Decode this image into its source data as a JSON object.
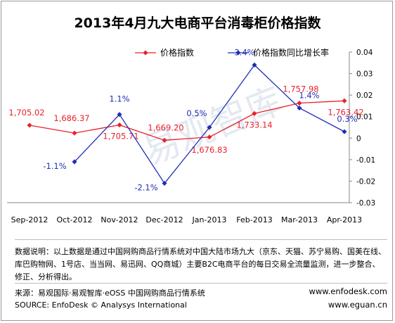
{
  "title": "2013年4月九大电商平台消毒柜价格指数",
  "colors": {
    "price": "#e8212b",
    "yoy": "#1f2fb5",
    "grid": "#c8c8c8",
    "watermark": "#cfd8e8"
  },
  "watermark": "易观智库",
  "chart_data": {
    "type": "line",
    "categories": [
      "Sep-2012",
      "Oct-2012",
      "Nov-2012",
      "Dec-2012",
      "Jan-2013",
      "Feb-2013",
      "Mar-2013",
      "Apr-2013"
    ],
    "series": [
      {
        "name": "价格指数",
        "axis": "left",
        "values": [
          1705.02,
          1686.37,
          1705.71,
          1669.2,
          1676.83,
          1733.14,
          1757.98,
          1763.42
        ],
        "labels": [
          "1,705.02",
          "1,686.37",
          "1,705.71",
          "1,669.20",
          "1,676.83",
          "1,733.14",
          "1,757.98",
          "1,763.42"
        ]
      },
      {
        "name": "价格指数同比增长率",
        "axis": "right",
        "values": [
          -0.011,
          null,
          0.011,
          -0.021,
          0.005,
          0.034,
          0.014,
          0.003
        ],
        "labels": [
          "-1.1%",
          "",
          "1.1%",
          "-2.1%",
          "0.5%",
          "3.4%",
          "1.4%",
          "0.3%"
        ]
      }
    ],
    "right_axis": {
      "ylim": [
        -0.03,
        0.04
      ],
      "ticks": [
        0.04,
        0.03,
        0.02,
        0.01,
        0,
        -0.01,
        -0.02,
        -0.03
      ],
      "tick_labels": [
        "0.04",
        "0.03",
        "0.02",
        "0.01",
        "0",
        "-0.01",
        "-0.02",
        "-0.03"
      ]
    },
    "legend_position": "top",
    "grid": false
  },
  "notes": {
    "text": "数据说明：以上数据是通过中国网购商品行情系统对中国大陆市场九大（京东、天猫、苏宁易购、国美在线、库巴购物网、1号店、当当网、易迅网、QQ商城）主要B2C电商平台的每日交易全流量监测，进一步整合、修正、分析得出。"
  },
  "source": {
    "cn": "来源：易观国际·易观智库·eOSS 中国网购商品行情系统",
    "en": "SOURCE: EnfoDesk © Analysys International",
    "url1": "www.enfodesk.com",
    "url2": "www.eguan.cn"
  }
}
